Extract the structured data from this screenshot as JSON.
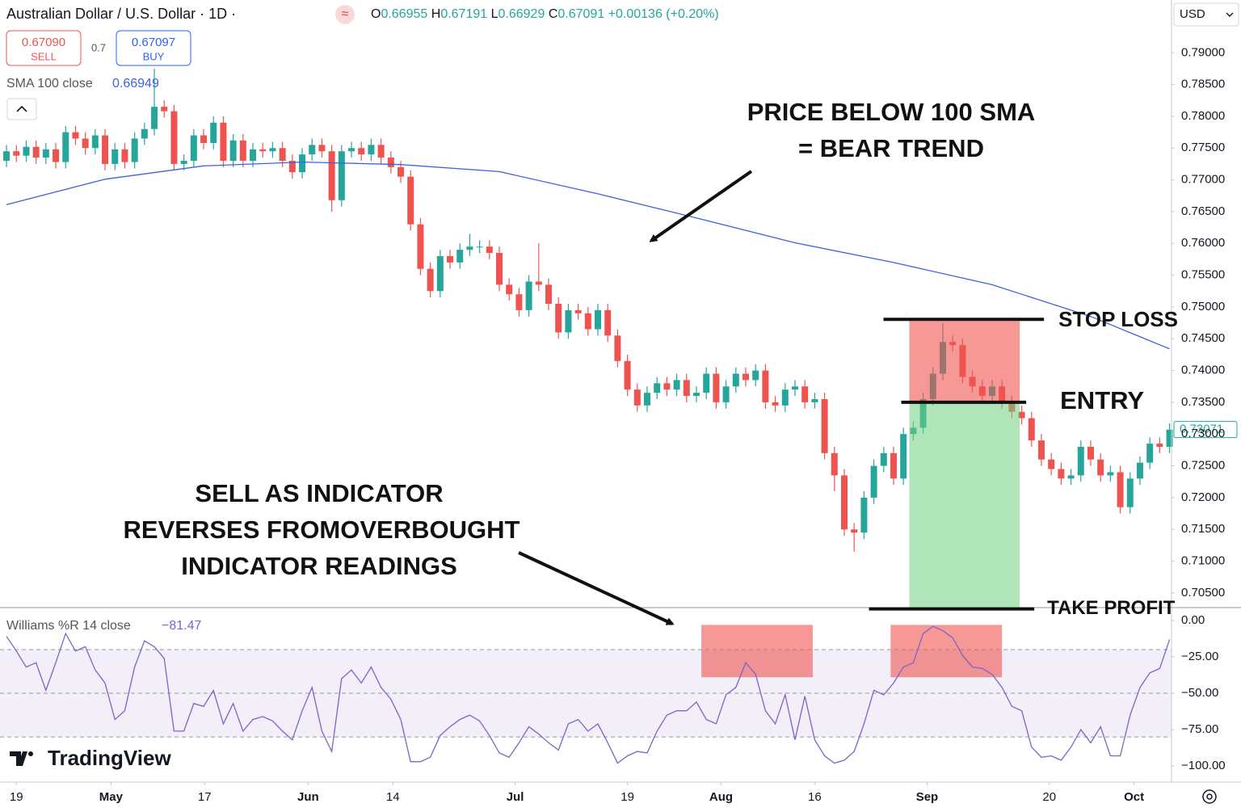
{
  "header": {
    "symbol": "Australian Dollar / U.S. Dollar · 1D ·",
    "icon": "≈",
    "ohlc": [
      {
        "key": "O",
        "value": "0.66955"
      },
      {
        "key": "H",
        "value": "0.67191"
      },
      {
        "key": "L",
        "value": "0.66929"
      },
      {
        "key": "C",
        "value": "0.67091"
      }
    ],
    "change": "+0.00136 (+0.20%)",
    "sell_price": "0.67090",
    "sell": "SELL",
    "spread": "0.7",
    "buy_price": "0.67097",
    "buy": "BUY",
    "currency": "USD",
    "logo": "TradingView"
  },
  "chart_data": [
    {
      "type": "candlestick",
      "up_color": "#26a69a",
      "down_color": "#ef5350",
      "xlim": [
        -0.66,
        118.2
      ],
      "ylim": [
        0.7027,
        0.7983
      ],
      "yticks": [
        {
          "value": 0.79,
          "label": "0.79000"
        },
        {
          "value": 0.785,
          "label": "0.78500"
        },
        {
          "value": 0.78,
          "label": "0.78000"
        },
        {
          "value": 0.775,
          "label": "0.77500"
        },
        {
          "value": 0.77,
          "label": "0.77000"
        },
        {
          "value": 0.765,
          "label": "0.76500"
        },
        {
          "value": 0.76,
          "label": "0.76000"
        },
        {
          "value": 0.755,
          "label": "0.75500"
        },
        {
          "value": 0.75,
          "label": "0.75000"
        },
        {
          "value": 0.745,
          "label": "0.74500"
        },
        {
          "value": 0.74,
          "label": "0.74000"
        },
        {
          "value": 0.735,
          "label": "0.73500"
        },
        {
          "value": 0.73,
          "label": "0.73000"
        },
        {
          "value": 0.725,
          "label": "0.72500"
        },
        {
          "value": 0.72,
          "label": "0.72000"
        },
        {
          "value": 0.715,
          "label": "0.71500"
        },
        {
          "value": 0.71,
          "label": "0.71000"
        },
        {
          "value": 0.705,
          "label": "0.70500"
        }
      ],
      "xticks": [
        {
          "value": 1,
          "label": "19"
        },
        {
          "value": 10.6,
          "label": "May"
        },
        {
          "value": 20.1,
          "label": "17"
        },
        {
          "value": 30.6,
          "label": "Jun"
        },
        {
          "value": 39.2,
          "label": "14"
        },
        {
          "value": 51.6,
          "label": "Jul"
        },
        {
          "value": 63,
          "label": "19"
        },
        {
          "value": 72.5,
          "label": "Aug"
        },
        {
          "value": 82,
          "label": "16"
        },
        {
          "value": 93.4,
          "label": "Sep"
        },
        {
          "value": 105.8,
          "label": "20"
        },
        {
          "value": 114.4,
          "label": "Oct"
        }
      ],
      "open": [
        0.773,
        0.7745,
        0.7738,
        0.7752,
        0.7735,
        0.7748,
        0.7728,
        0.7775,
        0.7765,
        0.775,
        0.777,
        0.7725,
        0.7748,
        0.7728,
        0.7765,
        0.778,
        0.7815,
        0.7808,
        0.7725,
        0.773,
        0.777,
        0.7758,
        0.779,
        0.773,
        0.7762,
        0.773,
        0.7748,
        0.7745,
        0.775,
        0.773,
        0.7712,
        0.774,
        0.7755,
        0.7745,
        0.7668,
        0.7745,
        0.775,
        0.774,
        0.7755,
        0.7735,
        0.772,
        0.7705,
        0.763,
        0.756,
        0.7525,
        0.758,
        0.757,
        0.759,
        0.7595,
        0.7595,
        0.7585,
        0.7535,
        0.752,
        0.7495,
        0.754,
        0.7535,
        0.7505,
        0.746,
        0.7495,
        0.749,
        0.7465,
        0.7495,
        0.7455,
        0.7415,
        0.737,
        0.7345,
        0.7365,
        0.738,
        0.737,
        0.7385,
        0.736,
        0.7365,
        0.7395,
        0.735,
        0.7375,
        0.7395,
        0.7385,
        0.74,
        0.735,
        0.7345,
        0.737,
        0.7375,
        0.735,
        0.7355,
        0.727,
        0.7235,
        0.715,
        0.7145,
        0.72,
        0.725,
        0.727,
        0.723,
        0.73,
        0.731,
        0.7355,
        0.7395,
        0.7445,
        0.744,
        0.739,
        0.7375,
        0.736,
        0.7375,
        0.735,
        0.7335,
        0.7325,
        0.729,
        0.726,
        0.7245,
        0.723,
        0.7235,
        0.728,
        0.726,
        0.7235,
        0.724,
        0.7185,
        0.723,
        0.7255,
        0.7285,
        0.728
      ],
      "high": [
        0.7755,
        0.7755,
        0.7762,
        0.7762,
        0.7758,
        0.7758,
        0.7785,
        0.7785,
        0.7775,
        0.778,
        0.778,
        0.7758,
        0.7758,
        0.7775,
        0.779,
        0.7875,
        0.7825,
        0.7818,
        0.774,
        0.778,
        0.778,
        0.78,
        0.78,
        0.7772,
        0.7772,
        0.7758,
        0.7758,
        0.776,
        0.776,
        0.774,
        0.775,
        0.7765,
        0.7765,
        0.7755,
        0.7755,
        0.776,
        0.776,
        0.7765,
        0.7765,
        0.7745,
        0.773,
        0.7715,
        0.764,
        0.757,
        0.759,
        0.759,
        0.76,
        0.7615,
        0.7605,
        0.7605,
        0.7595,
        0.7545,
        0.753,
        0.755,
        0.76,
        0.7545,
        0.7515,
        0.7505,
        0.7505,
        0.75,
        0.7505,
        0.7505,
        0.7465,
        0.7425,
        0.738,
        0.7375,
        0.739,
        0.739,
        0.7395,
        0.7395,
        0.7375,
        0.7405,
        0.7405,
        0.7385,
        0.7405,
        0.7405,
        0.741,
        0.741,
        0.736,
        0.738,
        0.7385,
        0.7385,
        0.7365,
        0.7365,
        0.728,
        0.7245,
        0.716,
        0.721,
        0.726,
        0.728,
        0.728,
        0.731,
        0.732,
        0.7365,
        0.7405,
        0.7475,
        0.7455,
        0.745,
        0.74,
        0.7385,
        0.7385,
        0.7385,
        0.736,
        0.7345,
        0.7335,
        0.73,
        0.727,
        0.7255,
        0.7245,
        0.729,
        0.729,
        0.727,
        0.725,
        0.725,
        0.724,
        0.7265,
        0.7295,
        0.7295,
        0.7317
      ],
      "low": [
        0.772,
        0.7728,
        0.7728,
        0.7725,
        0.7725,
        0.7718,
        0.7718,
        0.7755,
        0.774,
        0.774,
        0.7715,
        0.7715,
        0.7718,
        0.7718,
        0.7755,
        0.777,
        0.7798,
        0.7715,
        0.7715,
        0.772,
        0.7748,
        0.7748,
        0.772,
        0.772,
        0.772,
        0.772,
        0.7735,
        0.7735,
        0.772,
        0.7702,
        0.7702,
        0.773,
        0.7735,
        0.765,
        0.7658,
        0.7735,
        0.773,
        0.773,
        0.7725,
        0.771,
        0.7695,
        0.762,
        0.755,
        0.7515,
        0.7515,
        0.756,
        0.756,
        0.758,
        0.7585,
        0.7575,
        0.7525,
        0.751,
        0.7485,
        0.7485,
        0.7525,
        0.7495,
        0.745,
        0.745,
        0.748,
        0.7455,
        0.7455,
        0.7445,
        0.7405,
        0.736,
        0.7335,
        0.7335,
        0.7355,
        0.736,
        0.736,
        0.735,
        0.735,
        0.7355,
        0.734,
        0.734,
        0.7365,
        0.7375,
        0.7375,
        0.734,
        0.7335,
        0.7335,
        0.736,
        0.734,
        0.734,
        0.726,
        0.721,
        0.714,
        0.7115,
        0.7135,
        0.719,
        0.724,
        0.722,
        0.722,
        0.729,
        0.73,
        0.7345,
        0.7385,
        0.743,
        0.738,
        0.7365,
        0.735,
        0.735,
        0.734,
        0.7325,
        0.7315,
        0.728,
        0.725,
        0.7235,
        0.722,
        0.722,
        0.7225,
        0.725,
        0.7225,
        0.7225,
        0.7175,
        0.7175,
        0.722,
        0.7245,
        0.727,
        0.727
      ],
      "close": [
        0.7745,
        0.7738,
        0.7752,
        0.7735,
        0.7748,
        0.7728,
        0.7775,
        0.7765,
        0.775,
        0.777,
        0.7725,
        0.7748,
        0.7728,
        0.7765,
        0.778,
        0.7815,
        0.7808,
        0.7725,
        0.773,
        0.777,
        0.7758,
        0.779,
        0.773,
        0.7762,
        0.773,
        0.7748,
        0.7745,
        0.775,
        0.773,
        0.7712,
        0.774,
        0.7755,
        0.7745,
        0.7668,
        0.7745,
        0.775,
        0.774,
        0.7755,
        0.7735,
        0.772,
        0.7705,
        0.763,
        0.756,
        0.7525,
        0.758,
        0.757,
        0.759,
        0.7595,
        0.7595,
        0.7585,
        0.7535,
        0.752,
        0.7495,
        0.754,
        0.7535,
        0.7505,
        0.746,
        0.7495,
        0.749,
        0.7465,
        0.7495,
        0.7455,
        0.7415,
        0.737,
        0.7345,
        0.7365,
        0.738,
        0.737,
        0.7385,
        0.736,
        0.7365,
        0.7395,
        0.735,
        0.7375,
        0.7395,
        0.7385,
        0.74,
        0.735,
        0.7345,
        0.737,
        0.7375,
        0.735,
        0.7355,
        0.727,
        0.7235,
        0.715,
        0.7145,
        0.72,
        0.725,
        0.727,
        0.723,
        0.73,
        0.731,
        0.7355,
        0.7395,
        0.7445,
        0.744,
        0.739,
        0.7375,
        0.736,
        0.7375,
        0.735,
        0.7335,
        0.7325,
        0.729,
        0.726,
        0.7245,
        0.723,
        0.7235,
        0.728,
        0.726,
        0.7235,
        0.724,
        0.7185,
        0.723,
        0.7255,
        0.7285,
        0.728,
        0.7307
      ],
      "sma": {
        "name": "SMA 100 close",
        "value_label": "0.66949",
        "color": "#3b63e0",
        "x": [
          0,
          10,
          20,
          30,
          40,
          50,
          60,
          70,
          80,
          90,
          100,
          110,
          118
        ],
        "values": [
          0.7661,
          0.7701,
          0.7722,
          0.7728,
          0.7724,
          0.7713,
          0.7678,
          0.764,
          0.7601,
          0.757,
          0.7535,
          0.7485,
          0.7434
        ]
      },
      "last": {
        "value": 0.73071,
        "label": "0.73071"
      },
      "trade": {
        "from": 91.6,
        "to": 102.8,
        "stop": 0.7478,
        "entry": 0.735,
        "target": 0.7025,
        "stop_label": "STOP LOSS",
        "entry_label": "ENTRY",
        "target_label": "TAKE PROFIT"
      },
      "annotations": [
        {
          "lines": [
            "PRICE BELOW 100 SMA",
            "= BEAR TREND"
          ]
        },
        {
          "lines": [
            "SELL AS INDICATOR",
            "REVERSES FROMOVERBOUGHT",
            "INDICATOR READINGS"
          ]
        }
      ]
    },
    {
      "type": "line",
      "name": "Williams %R 14 close",
      "value_label": "−81.47",
      "color": "#7e63c8",
      "ylim": [
        -109.4,
        8.9
      ],
      "yticks": [
        {
          "value": 0,
          "label": "0.00"
        },
        {
          "value": -25,
          "label": "−25.00"
        },
        {
          "value": -50,
          "label": "−50.00"
        },
        {
          "value": -75,
          "label": "−75.00"
        },
        {
          "value": -100,
          "label": "−100.00"
        }
      ],
      "levels": [
        -20,
        -50,
        -80
      ],
      "highlights": [
        {
          "from": 70.5,
          "to": 81.8,
          "top": -3,
          "bottom": -39
        },
        {
          "from": 89.7,
          "to": 101,
          "top": -3,
          "bottom": -39
        }
      ],
      "values": [
        -11,
        -21,
        -32,
        -29,
        -48,
        -29,
        -9,
        -21,
        -18,
        -34,
        -43,
        -68,
        -62,
        -32,
        -14,
        -18,
        -26,
        -76,
        -76,
        -57,
        -59,
        -48,
        -71,
        -57,
        -76,
        -68,
        -66,
        -69,
        -76,
        -82,
        -62,
        -46,
        -76,
        -90,
        -40,
        -34,
        -43,
        -32,
        -46,
        -54,
        -68,
        -97,
        -97,
        -94,
        -79,
        -73,
        -68,
        -65,
        -69,
        -79,
        -91,
        -94,
        -84,
        -73,
        -78,
        -84,
        -89,
        -71,
        -68,
        -76,
        -71,
        -84,
        -98,
        -93,
        -90,
        -91,
        -76,
        -65,
        -62,
        -62,
        -56,
        -68,
        -71,
        -51,
        -46,
        -29,
        -37,
        -62,
        -71,
        -51,
        -82,
        -52,
        -82,
        -93,
        -98,
        -96,
        -90,
        -71,
        -48,
        -51,
        -43,
        -32,
        -29,
        -9,
        -4,
        -7,
        -12,
        -24,
        -32,
        -33,
        -37,
        -46,
        -59,
        -62,
        -87,
        -94,
        -93,
        -96,
        -87,
        -75,
        -84,
        -73,
        -93,
        -93,
        -65,
        -46,
        -36,
        -33,
        -13
      ]
    }
  ]
}
